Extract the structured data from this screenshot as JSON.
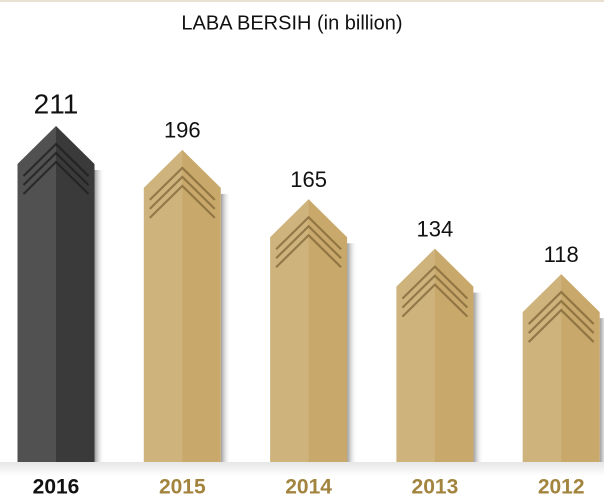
{
  "chart_data": {
    "type": "bar",
    "title": "LABA BERSIH (in billion)",
    "categories": [
      "2016",
      "2015",
      "2014",
      "2013",
      "2012"
    ],
    "values": [
      211,
      196,
      165,
      134,
      118
    ],
    "colors": [
      "#3a3a3a",
      "#c9a96b",
      "#c9a96b",
      "#c9a96b",
      "#c9a96b"
    ]
  }
}
